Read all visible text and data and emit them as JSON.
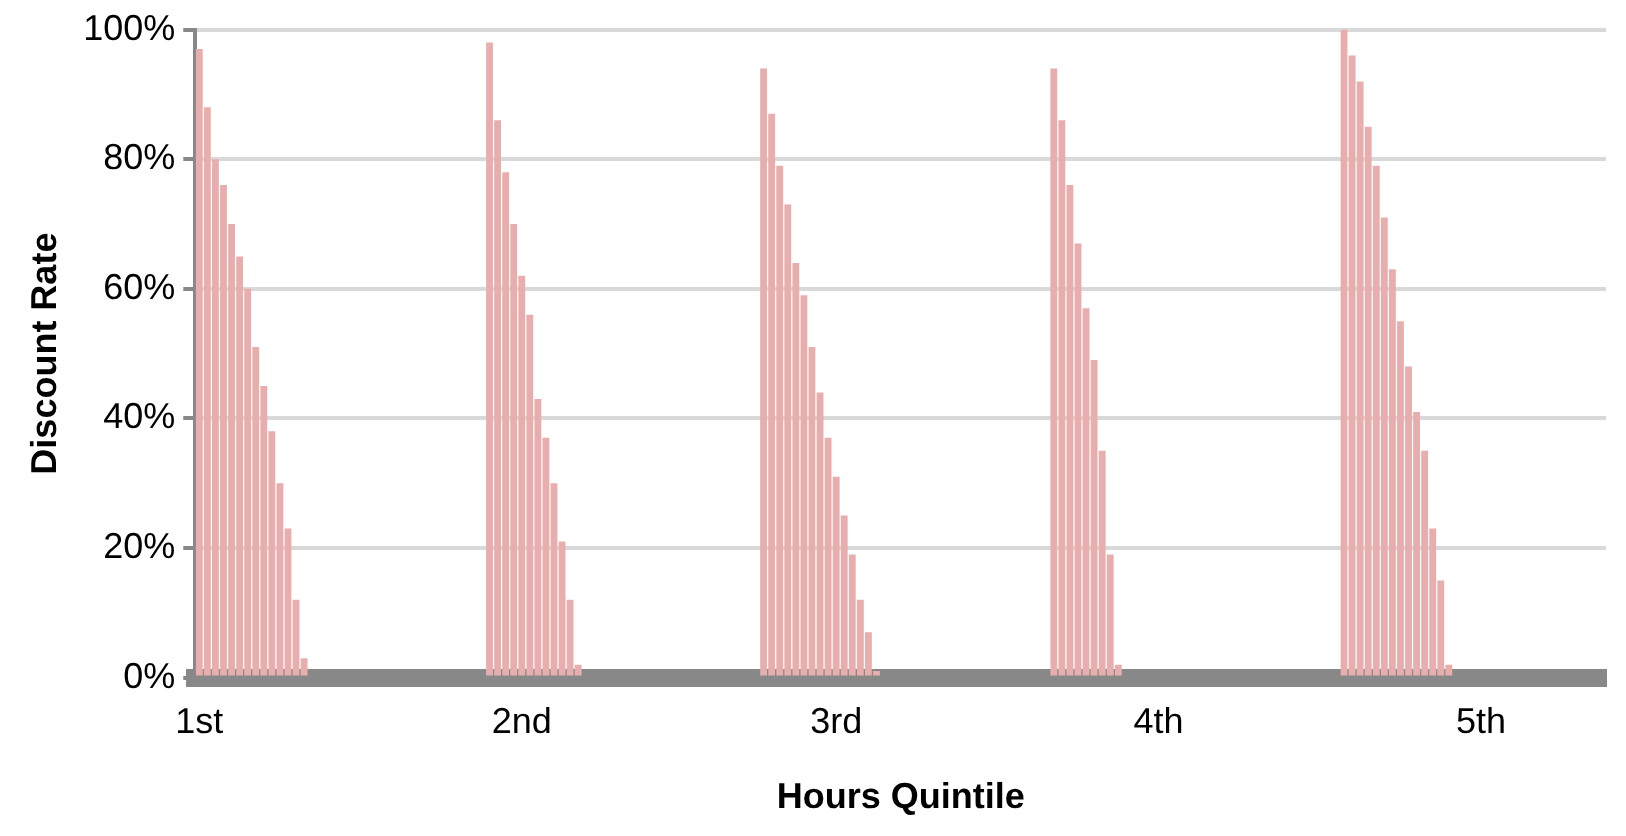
{
  "chart_data": {
    "type": "bar",
    "xlabel": "Hours Quintile",
    "ylabel": "Discount Rate",
    "color": "#e8aeae",
    "grid": "y",
    "legend": false,
    "ylim": [
      0,
      100
    ],
    "yticks": [
      {
        "value": 0,
        "label": "0%"
      },
      {
        "value": 20,
        "label": "20%"
      },
      {
        "value": 40,
        "label": "40%"
      },
      {
        "value": 60,
        "label": "60%"
      },
      {
        "value": 80,
        "label": "80%"
      },
      {
        "value": 100,
        "label": "100%"
      }
    ],
    "categories": [
      "1st",
      null,
      null,
      null,
      null,
      null,
      null,
      null,
      null,
      null,
      null,
      null,
      null,
      null,
      null,
      null,
      null,
      null,
      null,
      null,
      null,
      null,
      null,
      null,
      null,
      null,
      null,
      null,
      null,
      null,
      null,
      null,
      null,
      null,
      null,
      null,
      null,
      null,
      null,
      null,
      "2nd",
      null,
      null,
      null,
      null,
      null,
      null,
      null,
      null,
      null,
      null,
      null,
      null,
      null,
      null,
      null,
      null,
      null,
      null,
      null,
      null,
      null,
      null,
      null,
      null,
      null,
      null,
      null,
      null,
      null,
      null,
      null,
      null,
      null,
      null,
      null,
      null,
      null,
      null,
      "3rd",
      null,
      null,
      null,
      null,
      null,
      null,
      null,
      null,
      null,
      null,
      null,
      null,
      null,
      null,
      null,
      null,
      null,
      null,
      null,
      null,
      null,
      null,
      null,
      null,
      null,
      null,
      null,
      null,
      null,
      null,
      null,
      null,
      null,
      null,
      null,
      null,
      null,
      null,
      null,
      "4th",
      null,
      null,
      null,
      null,
      null,
      null,
      null,
      null,
      null,
      null,
      null,
      null,
      null,
      null,
      null,
      null,
      null,
      null,
      null,
      null,
      null,
      null,
      null,
      null,
      null,
      null,
      null,
      null,
      null,
      null,
      null,
      null,
      null,
      null,
      null,
      null,
      null,
      null,
      null,
      "5th",
      null,
      null,
      null,
      null,
      null,
      null,
      null,
      null,
      null,
      null,
      null,
      null,
      null,
      null,
      null
    ],
    "values": [
      97,
      88,
      80,
      76,
      70,
      65,
      60,
      51,
      45,
      38,
      30,
      23,
      12,
      3,
      null,
      null,
      null,
      null,
      null,
      null,
      null,
      null,
      null,
      null,
      null,
      null,
      null,
      null,
      null,
      null,
      null,
      null,
      null,
      null,
      null,
      null,
      98,
      86,
      78,
      70,
      62,
      56,
      43,
      37,
      30,
      21,
      12,
      2,
      null,
      null,
      null,
      null,
      null,
      null,
      null,
      null,
      null,
      null,
      null,
      null,
      null,
      null,
      null,
      null,
      null,
      null,
      null,
      null,
      null,
      null,
      94,
      87,
      79,
      73,
      64,
      59,
      51,
      44,
      37,
      31,
      25,
      19,
      12,
      7,
      1,
      null,
      null,
      null,
      null,
      null,
      null,
      null,
      null,
      null,
      null,
      null,
      null,
      null,
      null,
      null,
      null,
      null,
      null,
      null,
      null,
      null,
      94,
      86,
      76,
      67,
      57,
      49,
      35,
      19,
      2,
      null,
      null,
      null,
      null,
      null,
      null,
      null,
      null,
      null,
      null,
      null,
      null,
      null,
      null,
      null,
      null,
      null,
      null,
      null,
      null,
      null,
      null,
      null,
      null,
      null,
      null,
      null,
      100,
      96,
      92,
      85,
      79,
      71,
      63,
      55,
      48,
      41,
      35,
      23,
      15,
      2,
      null,
      null,
      null,
      null,
      null,
      null,
      null,
      null,
      null,
      null,
      null,
      null,
      null,
      null,
      null,
      null,
      null,
      null,
      null
    ]
  }
}
